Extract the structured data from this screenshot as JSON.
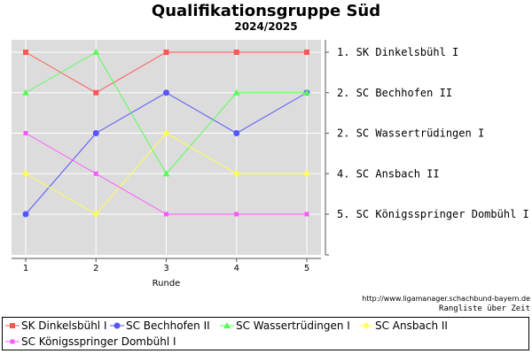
{
  "title": "Qualifikationsgruppe Süd",
  "subtitle": "2024/2025",
  "source": "http://www.ligamanager.schachbund-bayern.de",
  "caption": "Rangliste über Zeit",
  "chart_data": {
    "type": "line",
    "title": "Qualifikationsgruppe Süd",
    "subtitle": "2024/2025",
    "xlabel": "Runde",
    "ylabel": "",
    "x": [
      1,
      2,
      3,
      4,
      5
    ],
    "xlim": [
      0.8,
      5.2
    ],
    "ylim": [
      6,
      0.8
    ],
    "y_inverted": true,
    "grid": true,
    "legend_position": "bottom",
    "right_labels": [
      {
        "text": "1. SK Dinkelsbühl I",
        "rank": 1
      },
      {
        "text": "2. SC Bechhofen II",
        "rank": 2
      },
      {
        "text": "2. SC Wassertrüdingen I",
        "rank": 3
      },
      {
        "text": "4. SC Ansbach II",
        "rank": 4
      },
      {
        "text": "5. SC Königsspringer Dombühl I",
        "rank": 5
      }
    ],
    "series": [
      {
        "name": "SK Dinkelsbühl I",
        "color": "#ff5555",
        "marker": "square",
        "values": [
          1,
          2,
          1,
          1,
          1
        ]
      },
      {
        "name": "SC Bechhofen II",
        "color": "#5555ff",
        "marker": "circle",
        "values": [
          5,
          3,
          2,
          3,
          2
        ]
      },
      {
        "name": "SC Wassertrüdingen I",
        "color": "#55ff55",
        "marker": "triangle",
        "values": [
          2,
          1,
          4,
          2,
          2
        ]
      },
      {
        "name": "SC Ansbach II",
        "color": "#ffff55",
        "marker": "diamond",
        "values": [
          4,
          5,
          3,
          4,
          4
        ]
      },
      {
        "name": "SC Königsspringer Dombühl I",
        "color": "#ff55ff",
        "marker": "small-square",
        "values": [
          3,
          4,
          5,
          5,
          5
        ]
      }
    ]
  }
}
